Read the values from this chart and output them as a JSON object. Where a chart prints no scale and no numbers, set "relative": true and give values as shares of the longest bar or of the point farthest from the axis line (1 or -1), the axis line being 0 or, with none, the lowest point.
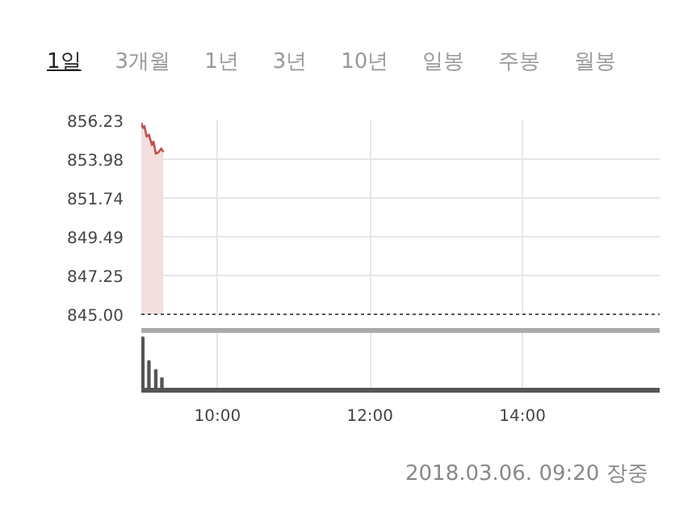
{
  "chart_data": [
    {
      "type": "area",
      "annotations": [
        "1일",
        "3개월",
        "1년",
        "3년",
        "10년",
        "일봉",
        "주봉",
        "월봉"
      ],
      "series": [
        {
          "color": "#c0504d",
          "x": [
            9.0,
            9.02,
            9.04,
            9.07,
            9.1,
            9.14,
            9.16,
            9.19,
            9.23,
            9.26,
            9.29
          ],
          "values": [
            856.1,
            855.8,
            855.9,
            855.3,
            855.4,
            854.8,
            855.0,
            854.3,
            854.4,
            854.6,
            854.4
          ]
        }
      ],
      "xlim": [
        9,
        15.8
      ],
      "xticks": [
        {
          "value": 10,
          "label": null
        },
        {
          "value": 12,
          "label": null
        },
        {
          "value": 14,
          "label": null
        }
      ],
      "ylim": [
        845,
        856.23
      ],
      "yticks": [
        {
          "value": 845,
          "label": "845.00"
        },
        {
          "value": 847.25,
          "label": "847.25"
        },
        {
          "value": 849.49,
          "label": "849.49"
        },
        {
          "value": 851.74,
          "label": "851.74"
        },
        {
          "value": 853.98,
          "label": "853.98"
        },
        {
          "value": 856.23,
          "label": "856.23"
        }
      ],
      "grid": true,
      "tick_labels": "y"
    },
    {
      "type": "bar",
      "relative": true,
      "annotations": [
        "2018.03.06. 09:20 장중"
      ],
      "series": [
        {
          "color": "#555555",
          "x": [
            9.02,
            9.1,
            9.19,
            9.27
          ],
          "values": [
            1,
            0.55,
            0.38,
            0.23
          ]
        }
      ],
      "xlim": [
        9,
        15.8
      ],
      "xticks": [
        {
          "value": 10,
          "label": "10:00"
        },
        {
          "value": 12,
          "label": "12:00"
        },
        {
          "value": 14,
          "label": "14:00"
        }
      ],
      "grid": "x",
      "tick_labels": "x"
    }
  ]
}
